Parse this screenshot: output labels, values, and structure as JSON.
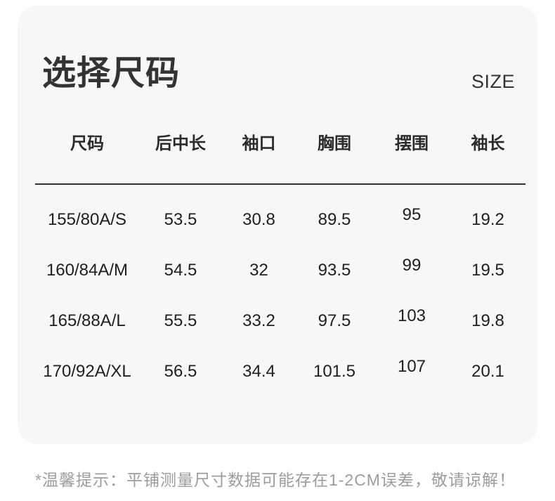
{
  "header": {
    "title": "选择尺码",
    "size_label": "SIZE"
  },
  "size_table": {
    "columns": [
      "尺码",
      "后中长",
      "袖口",
      "胸围",
      "摆围",
      "袖长"
    ],
    "rows": [
      [
        "155/80A/S",
        "53.5",
        "30.8",
        "89.5",
        "95",
        "19.2"
      ],
      [
        "160/84A/M",
        "54.5",
        "32",
        "93.5",
        "99",
        "19.5"
      ],
      [
        "165/88A/L",
        "55.5",
        "33.2",
        "97.5",
        "103",
        "19.8"
      ],
      [
        "170/92A/XL",
        "56.5",
        "34.4",
        "101.5",
        "107",
        "20.1"
      ]
    ]
  },
  "footer": {
    "note": "*温馨提示：平铺测量尺寸数据可能存在1-2CM误差，敬请谅解！"
  },
  "colors": {
    "page_bg": "#ffffff",
    "card_bg": "#f7f7f7",
    "text_primary": "#333333",
    "divider": "#333333",
    "note_text": "#9d9d9d"
  }
}
